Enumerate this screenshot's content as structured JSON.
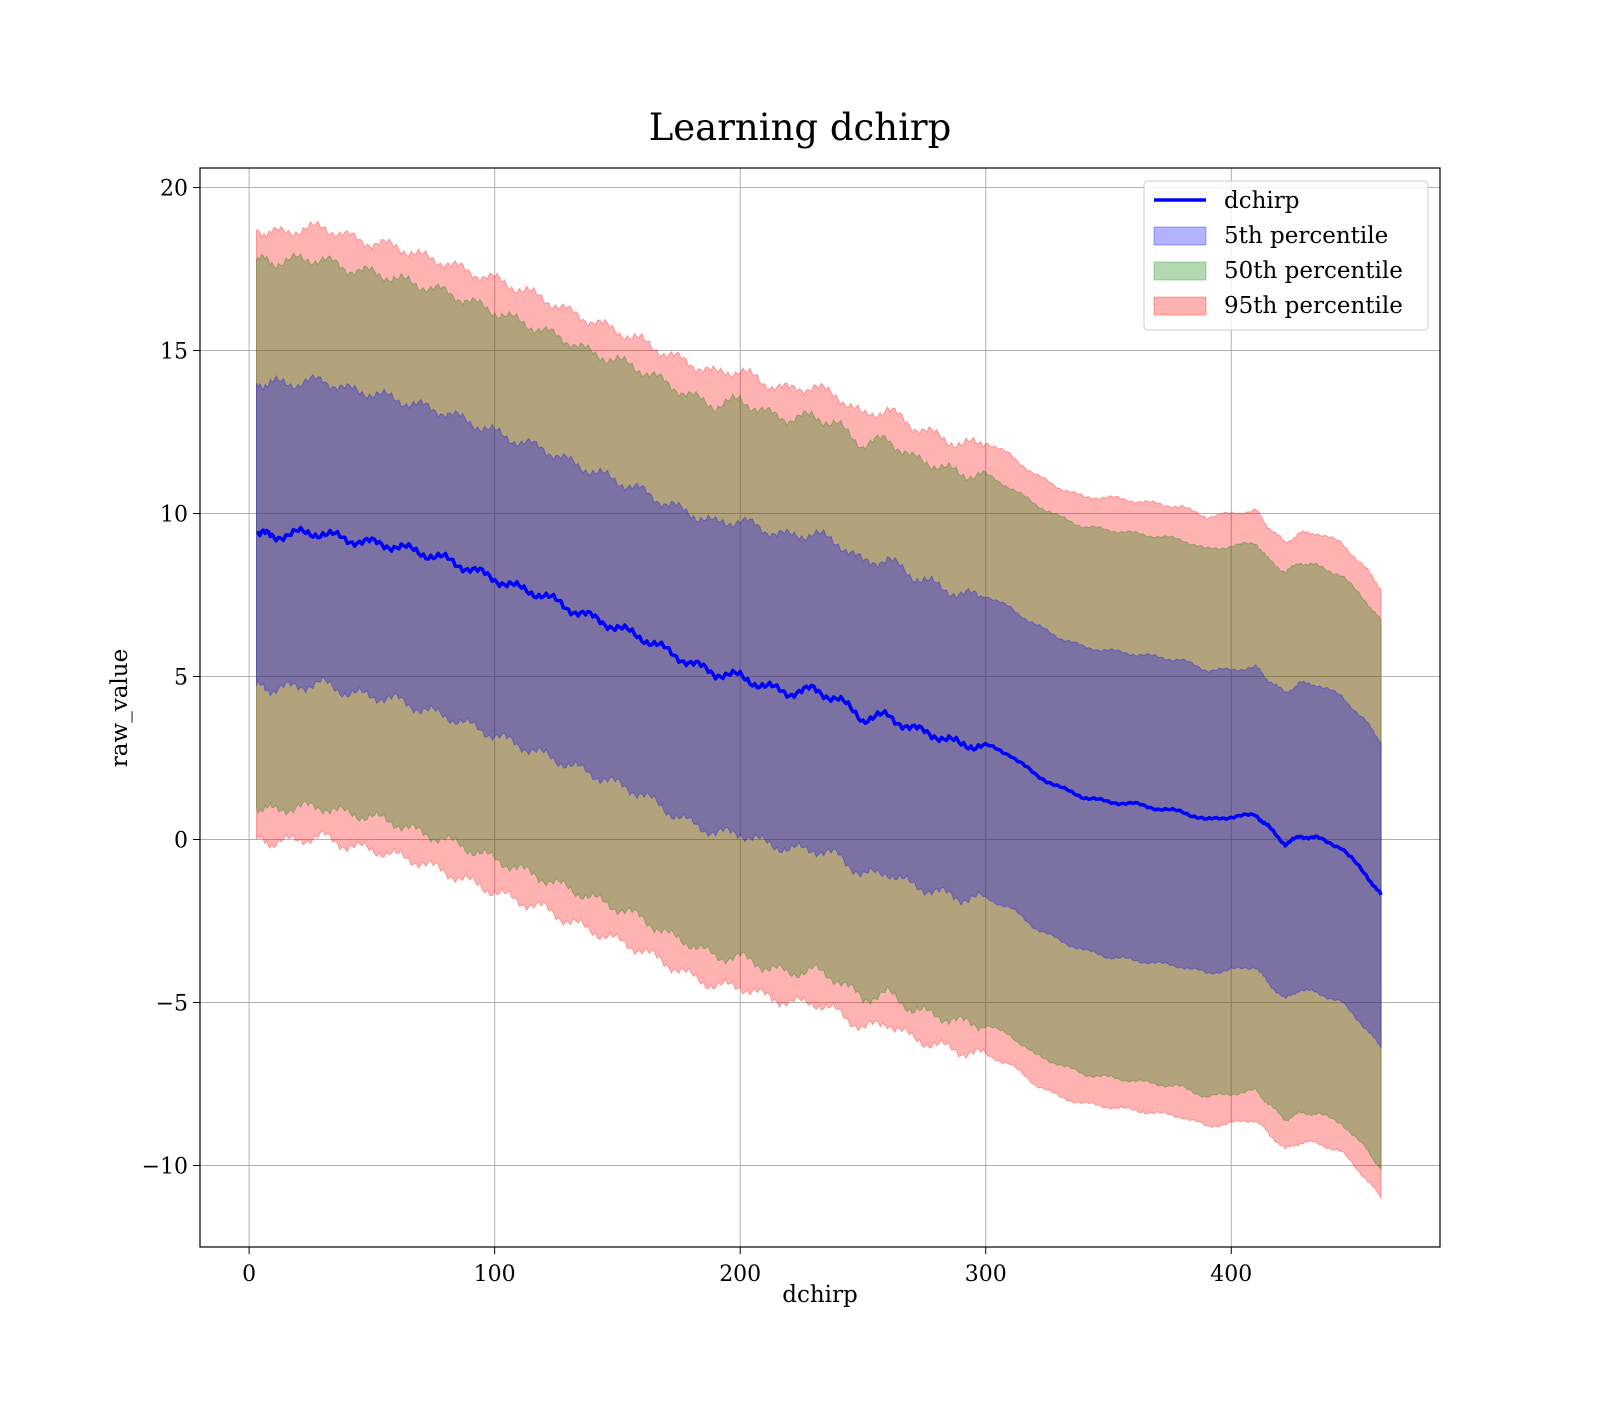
{
  "chart_data": {
    "type": "area",
    "title": "Learning dchirp",
    "xlabel": "dchirp",
    "ylabel": "raw_value",
    "xlim": [
      -20,
      485
    ],
    "ylim": [
      -12.5,
      20.6
    ],
    "xticks": [
      0,
      100,
      200,
      300,
      400
    ],
    "yticks": [
      -10,
      -5,
      0,
      5,
      10,
      15,
      20
    ],
    "xtick_labels": [
      "0",
      "100",
      "200",
      "300",
      "400"
    ],
    "ytick_labels": [
      "−10",
      "−5",
      "0",
      "5",
      "10",
      "15",
      "20"
    ],
    "grid": true,
    "legend_position": "upper right",
    "x": [
      3,
      10,
      20,
      30,
      40,
      50,
      60,
      70,
      80,
      90,
      100,
      110,
      120,
      130,
      140,
      150,
      160,
      170,
      180,
      190,
      200,
      210,
      220,
      230,
      240,
      250,
      260,
      270,
      280,
      290,
      300,
      310,
      320,
      330,
      340,
      350,
      360,
      370,
      380,
      390,
      400,
      410,
      415,
      422,
      428,
      435,
      445,
      455,
      461
    ],
    "line": {
      "name": "dchirp",
      "color": "#0000ff",
      "y": [
        9.4,
        9.3,
        9.4,
        9.4,
        9.2,
        9.1,
        9.0,
        8.8,
        8.6,
        8.3,
        8.0,
        7.7,
        7.5,
        7.1,
        6.8,
        6.5,
        6.2,
        5.8,
        5.4,
        5.1,
        5.0,
        4.7,
        4.5,
        4.6,
        4.3,
        3.7,
        3.8,
        3.4,
        3.2,
        2.9,
        2.9,
        2.6,
        2.0,
        1.6,
        1.3,
        1.15,
        1.1,
        0.95,
        0.85,
        0.6,
        0.7,
        0.75,
        0.4,
        -0.15,
        0.1,
        0.05,
        -0.25,
        -1.1,
        -1.7
      ]
    },
    "series": [
      {
        "name": "5th percentile",
        "color": "#0000ff",
        "lower": [
          4.7,
          4.6,
          4.7,
          4.8,
          4.5,
          4.4,
          4.3,
          4.0,
          3.8,
          3.5,
          3.2,
          2.9,
          2.6,
          2.3,
          2.0,
          1.7,
          1.4,
          0.9,
          0.5,
          0.2,
          0.2,
          -0.1,
          -0.3,
          -0.3,
          -0.5,
          -1.1,
          -1.0,
          -1.4,
          -1.6,
          -1.8,
          -1.8,
          -2.1,
          -2.7,
          -3.1,
          -3.4,
          -3.6,
          -3.7,
          -3.8,
          -3.9,
          -4.1,
          -4.0,
          -3.9,
          -4.4,
          -4.9,
          -4.6,
          -4.7,
          -5.0,
          -5.8,
          -6.4
        ],
        "upper": [
          14.0,
          14.0,
          14.0,
          14.1,
          13.8,
          13.7,
          13.5,
          13.3,
          13.1,
          12.8,
          12.5,
          12.2,
          12.0,
          11.6,
          11.3,
          11.0,
          10.7,
          10.3,
          10.0,
          9.7,
          9.8,
          9.5,
          9.3,
          9.4,
          9.1,
          8.5,
          8.6,
          8.1,
          7.8,
          7.5,
          7.5,
          7.1,
          6.6,
          6.2,
          5.9,
          5.8,
          5.7,
          5.6,
          5.5,
          5.2,
          5.2,
          5.3,
          4.9,
          4.5,
          4.8,
          4.75,
          4.4,
          3.6,
          3.0
        ]
      },
      {
        "name": "50th percentile",
        "color": "#008000",
        "lower": [
          1.0,
          0.9,
          1.0,
          1.0,
          0.8,
          0.7,
          0.5,
          0.2,
          0.0,
          -0.3,
          -0.6,
          -0.9,
          -1.2,
          -1.5,
          -1.8,
          -2.1,
          -2.4,
          -2.9,
          -3.2,
          -3.6,
          -3.6,
          -3.9,
          -4.1,
          -4.0,
          -4.3,
          -4.9,
          -4.7,
          -5.2,
          -5.4,
          -5.6,
          -5.7,
          -6.0,
          -6.6,
          -6.9,
          -7.2,
          -7.3,
          -7.4,
          -7.5,
          -7.6,
          -7.9,
          -7.8,
          -7.7,
          -8.1,
          -8.6,
          -8.4,
          -8.4,
          -8.7,
          -9.5,
          -10.1
        ],
        "upper": [
          17.8,
          17.7,
          17.8,
          17.8,
          17.5,
          17.4,
          17.2,
          17.0,
          16.8,
          16.5,
          16.2,
          15.9,
          15.6,
          15.3,
          14.9,
          14.7,
          14.4,
          14.0,
          13.6,
          13.3,
          13.5,
          13.1,
          12.9,
          13.0,
          12.7,
          12.1,
          12.3,
          11.7,
          11.5,
          11.2,
          11.2,
          10.8,
          10.3,
          9.9,
          9.6,
          9.5,
          9.4,
          9.3,
          9.2,
          8.9,
          9.0,
          9.1,
          8.6,
          8.2,
          8.5,
          8.4,
          8.1,
          7.3,
          6.7
        ]
      },
      {
        "name": "95th percentile",
        "color": "#ff0000",
        "lower": [
          0.0,
          -0.1,
          0.0,
          0.1,
          -0.2,
          -0.3,
          -0.5,
          -0.7,
          -1.0,
          -1.3,
          -1.6,
          -1.9,
          -2.1,
          -2.5,
          -2.8,
          -3.1,
          -3.4,
          -3.8,
          -4.2,
          -4.5,
          -4.5,
          -4.8,
          -5.0,
          -5.0,
          -5.3,
          -5.8,
          -5.6,
          -6.1,
          -6.3,
          -6.5,
          -6.6,
          -6.9,
          -7.5,
          -7.9,
          -8.1,
          -8.2,
          -8.3,
          -8.4,
          -8.5,
          -8.8,
          -8.7,
          -8.6,
          -9.0,
          -9.5,
          -9.3,
          -9.3,
          -9.6,
          -10.4,
          -11.0
        ],
        "upper": [
          18.7,
          18.6,
          18.7,
          18.8,
          18.5,
          18.3,
          18.2,
          17.9,
          17.7,
          17.4,
          17.2,
          16.9,
          16.6,
          16.2,
          15.9,
          15.6,
          15.3,
          14.9,
          14.6,
          14.3,
          14.4,
          14.0,
          13.8,
          13.9,
          13.6,
          13.0,
          13.2,
          12.7,
          12.4,
          12.1,
          12.2,
          11.8,
          11.2,
          10.8,
          10.5,
          10.5,
          10.4,
          10.3,
          10.2,
          9.9,
          10.0,
          10.1,
          9.6,
          9.1,
          9.4,
          9.4,
          9.1,
          8.3,
          7.7
        ]
      }
    ]
  }
}
